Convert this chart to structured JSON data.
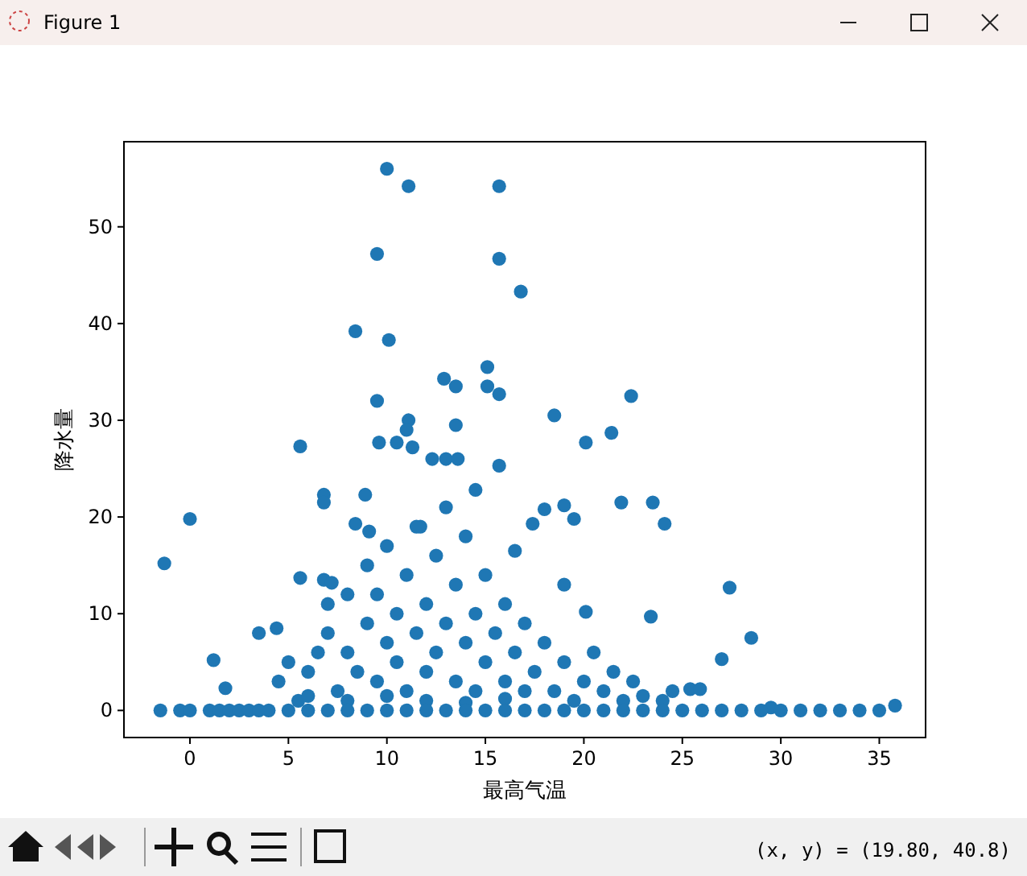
{
  "chart_data": {
    "type": "scatter",
    "xlabel": "最高气温",
    "ylabel": "降水量",
    "annotations": [
      "Figure 1",
      "(x, y) = (19.80, 40.8)"
    ],
    "xlim": [
      -3.35,
      37.35
    ],
    "ylim": [
      -2.8,
      58.8
    ],
    "xticks": [
      0,
      5,
      10,
      15,
      20,
      25,
      30,
      35
    ],
    "yticks": [
      0,
      10,
      20,
      30,
      40,
      50
    ],
    "color": "#1f77b4",
    "marker": "circle",
    "grid": false,
    "x": [
      -1.3,
      0,
      1.2,
      5.6,
      10.0,
      11.1,
      15.7,
      9.5,
      15.7,
      16.8,
      8.4,
      10.1,
      15.1,
      15.1,
      12.9,
      13.5,
      15.7,
      22.4,
      9.5,
      18.5,
      11.1,
      13.5,
      21.4,
      20.1,
      9.6,
      10.5,
      15.7,
      11.0,
      11.3,
      12.3,
      13.0,
      13.6,
      14.5,
      6.8,
      6.8,
      8.9,
      21.9,
      23.5,
      24.1,
      19.0,
      18.0,
      17.4,
      11.7,
      8.4,
      19.5,
      9.1,
      16.5,
      19.0,
      27.4,
      5.6,
      6.8,
      7.2,
      3.5,
      4.4,
      20.1,
      23.4,
      28.5,
      27.0,
      25.4,
      25.9,
      1.8,
      29.5,
      35.8,
      4.5,
      5,
      5.5,
      6,
      6.5,
      7,
      7,
      7.5,
      8,
      8,
      8.5,
      9,
      9,
      9.5,
      9.5,
      10,
      10,
      10.5,
      10.5,
      11,
      11,
      11.5,
      11.5,
      12,
      12,
      12.5,
      12.5,
      13,
      13,
      13.5,
      13.5,
      14,
      14,
      14.5,
      14.5,
      15,
      15,
      15.5,
      16,
      16,
      16.5,
      17,
      17,
      17.5,
      18,
      18.5,
      19,
      19.5,
      20,
      20.5,
      21,
      21.5,
      22,
      22.5,
      23,
      24,
      24.5,
      6,
      8,
      12,
      16,
      10,
      14,
      -1.5,
      -0.5,
      0,
      1,
      1.5,
      2,
      2.5,
      3,
      3.5,
      4,
      5,
      6,
      7,
      8,
      9,
      10,
      11,
      12,
      13,
      14,
      15,
      16,
      17,
      18,
      19,
      20,
      21,
      22,
      23,
      24,
      25,
      26,
      27,
      28,
      29,
      30,
      31,
      32,
      33,
      34,
      35
    ],
    "values": [
      15.2,
      19.8,
      5.2,
      27.3,
      56.0,
      54.2,
      54.2,
      47.2,
      46.7,
      43.3,
      39.2,
      38.3,
      35.5,
      33.5,
      34.3,
      33.5,
      32.7,
      32.5,
      32.0,
      30.5,
      30.0,
      29.5,
      28.7,
      27.7,
      27.7,
      27.7,
      25.3,
      29.0,
      27.2,
      26.0,
      26.0,
      26.0,
      22.8,
      22.3,
      21.5,
      22.3,
      21.5,
      21.5,
      19.3,
      21.2,
      20.8,
      19.3,
      19.0,
      19.3,
      19.8,
      18.5,
      16.5,
      13.0,
      12.7,
      13.7,
      13.5,
      13.2,
      8.0,
      8.5,
      10.2,
      9.7,
      7.5,
      5.3,
      2.2,
      2.2,
      2.3,
      0.3,
      0.5,
      3,
      5,
      1,
      4,
      6,
      8,
      11,
      2,
      6,
      12,
      4,
      9,
      15,
      3,
      12,
      7,
      17,
      5,
      10,
      2,
      14,
      8,
      19,
      4,
      11,
      16,
      6,
      9,
      21,
      3,
      13,
      7,
      18,
      10,
      2,
      5,
      14,
      8,
      3,
      11,
      6,
      2,
      9,
      4,
      7,
      2,
      5,
      1,
      3,
      6,
      2,
      4,
      1,
      3,
      1.5,
      1,
      2,
      1.5,
      1,
      1,
      1.2,
      1.5,
      0.8,
      0,
      0,
      0,
      0,
      0,
      0,
      0,
      0,
      0,
      0,
      0,
      0,
      0,
      0,
      0,
      0,
      0,
      0,
      0,
      0,
      0,
      0,
      0,
      0,
      0,
      0,
      0,
      0,
      0,
      0,
      0,
      0,
      0,
      0,
      0,
      0,
      0,
      0,
      0,
      0,
      0
    ]
  }
}
